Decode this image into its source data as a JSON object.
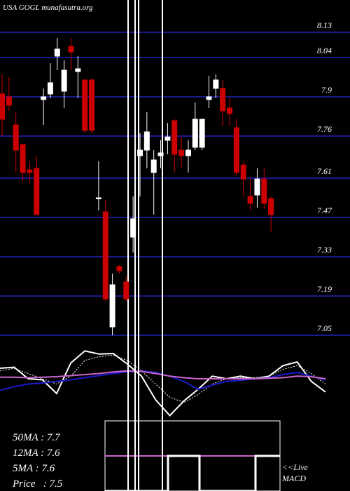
{
  "chart_data": [
    {
      "type": "candlestick",
      "title": "USA GOGL munafasutra.org",
      "ylim": [
        7.045,
        8.245
      ],
      "yticks": [
        8.13,
        8.04,
        7.9,
        7.76,
        7.61,
        7.47,
        7.33,
        7.19,
        7.05
      ],
      "grid": true,
      "grid_color": "#1a1a8c",
      "up_color": "#ffffff",
      "down_color": "#cc0000",
      "open": [
        7.91,
        7.9,
        7.8,
        7.73,
        7.64,
        7.645,
        7.89,
        7.91,
        8.045,
        7.92,
        8.08,
        7.99,
        7.96,
        7.96,
        7.54,
        7.49,
        7.08,
        7.295,
        7.24,
        7.4,
        7.69,
        7.71,
        7.63,
        7.69,
        7.745,
        7.815,
        7.71,
        7.69,
        7.72,
        7.72,
        7.89,
        7.93,
        7.93,
        7.86,
        7.79,
        7.657,
        7.545,
        7.55,
        7.607,
        7.537
      ],
      "high": [
        7.98,
        7.97,
        7.845,
        7.73,
        7.67,
        7.69,
        7.93,
        8.02,
        8.11,
        8.03,
        8.11,
        8.045,
        7.96,
        7.965,
        7.67,
        7.53,
        7.27,
        7.3,
        7.26,
        7.545,
        7.77,
        7.845,
        7.71,
        7.745,
        7.807,
        7.82,
        7.757,
        7.745,
        7.88,
        7.82,
        7.975,
        7.98,
        7.96,
        7.895,
        7.82,
        7.67,
        7.61,
        7.645,
        7.645,
        7.545
      ],
      "low": [
        7.76,
        7.85,
        7.63,
        7.6,
        7.595,
        7.48,
        7.8,
        7.895,
        7.995,
        7.86,
        7.995,
        7.895,
        7.77,
        7.77,
        7.495,
        7.17,
        7.05,
        7.27,
        7.17,
        7.345,
        7.545,
        7.645,
        7.48,
        7.645,
        7.695,
        7.63,
        7.645,
        7.63,
        7.71,
        7.71,
        7.86,
        7.895,
        7.795,
        7.795,
        7.62,
        7.545,
        7.495,
        7.505,
        7.5,
        7.42
      ],
      "close": [
        7.82,
        7.87,
        7.71,
        7.63,
        7.63,
        7.48,
        7.9,
        7.95,
        8.07,
        7.995,
        8.06,
        8.0,
        7.78,
        7.78,
        7.54,
        7.18,
        7.23,
        7.28,
        7.18,
        7.465,
        7.71,
        7.775,
        7.675,
        7.7,
        7.757,
        7.695,
        7.69,
        7.71,
        7.82,
        7.82,
        7.9,
        7.96,
        7.85,
        7.84,
        7.63,
        7.607,
        7.52,
        7.607,
        7.52,
        7.48
      ]
    },
    {
      "type": "line",
      "ylim": [
        -30,
        110
      ],
      "series": [
        {
          "color": "#ffffff",
          "dashed": false,
          "values": [
            70,
            72,
            50,
            48,
            22,
            80,
            103,
            97,
            98,
            78,
            55,
            10,
            -20,
            8,
            30,
            55,
            50,
            55,
            50,
            55,
            75,
            82,
            45,
            25
          ]
        },
        {
          "color": "#ffffff",
          "dashed": true,
          "values": [
            65,
            70,
            60,
            50,
            40,
            55,
            85,
            92,
            95,
            85,
            65,
            40,
            15,
            5,
            20,
            40,
            50,
            52,
            52,
            55,
            68,
            75,
            60,
            40
          ]
        },
        {
          "color": "#1a1acc",
          "dashed": false,
          "values": [
            28,
            35,
            40,
            42,
            45,
            48,
            52,
            56,
            60,
            63,
            65,
            62,
            55,
            45,
            30,
            38,
            45,
            47,
            50,
            52,
            58,
            62,
            55,
            48
          ]
        },
        {
          "color": "#cc66cc",
          "dashed": false,
          "values": [
            53,
            53,
            52,
            53,
            54,
            56,
            58,
            60,
            63,
            65,
            64,
            60,
            55,
            52,
            50,
            50,
            50,
            50,
            50,
            51,
            52,
            55,
            54,
            50
          ]
        }
      ]
    }
  ],
  "labels": [
    "50MA : 7.7",
    "12MA : 7.6",
    "5MA : 7.6",
    "Price   : 7.5"
  ],
  "live": [
    "<<Live",
    "MACD"
  ]
}
